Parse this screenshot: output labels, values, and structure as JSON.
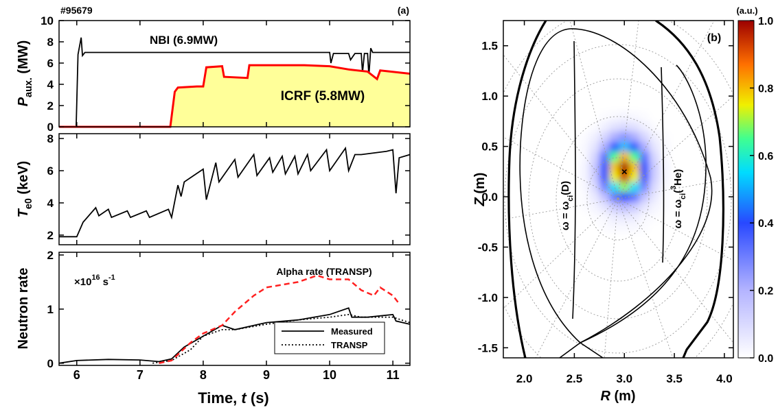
{
  "chart_data": [
    {
      "type": "line",
      "tag": "#95679",
      "label": "(a)",
      "ylabel": [
        "P",
        "aux.",
        " (MW)"
      ],
      "ylim": [
        0,
        10
      ],
      "yticks": [
        0,
        2,
        4,
        6,
        8,
        10
      ],
      "series": [
        {
          "name": "NBI (6.9MW)",
          "color": "#000000",
          "x": [
            5.72,
            5.99,
            6.02,
            6.07,
            6.09,
            6.13,
            10.0,
            10.02,
            10.06,
            10.08,
            10.3,
            10.33,
            10.4,
            10.5,
            10.52,
            10.55,
            10.6,
            10.62,
            10.65,
            10.68,
            11.27
          ],
          "values": [
            0,
            0,
            6.8,
            8.4,
            6.7,
            7.0,
            7.0,
            6.0,
            6.9,
            6.9,
            6.9,
            6.3,
            6.9,
            6.9,
            5.1,
            6.9,
            6.9,
            4.8,
            7.4,
            7.0,
            7.0
          ]
        },
        {
          "name": "ICRF (5.8MW)",
          "color": "#ff0000",
          "fill": "#ffff99",
          "x": [
            5.72,
            7.48,
            7.55,
            7.6,
            7.9,
            8.0,
            8.05,
            8.3,
            8.33,
            8.7,
            8.73,
            9.6,
            10.0,
            10.3,
            10.6,
            10.75,
            10.8,
            11.27
          ],
          "values": [
            0,
            0,
            3.3,
            3.7,
            3.8,
            3.8,
            5.6,
            5.7,
            4.7,
            4.6,
            5.8,
            5.8,
            5.7,
            5.4,
            5.2,
            4.5,
            5.3,
            5.0
          ]
        }
      ]
    },
    {
      "type": "line",
      "ylabel": [
        "T",
        "e0",
        " (keV)"
      ],
      "ylim": [
        1.4,
        8.3
      ],
      "yticks": [
        2,
        4,
        6,
        8
      ],
      "series": [
        {
          "color": "#000000",
          "x": [
            5.72,
            6.0,
            6.1,
            6.3,
            6.35,
            6.5,
            6.55,
            6.8,
            6.85,
            7.1,
            7.15,
            7.45,
            7.5,
            7.6,
            7.65,
            7.7,
            8.0,
            8.05,
            8.2,
            8.25,
            8.5,
            8.55,
            8.8,
            8.85,
            9.05,
            9.1,
            9.25,
            9.3,
            9.45,
            9.5,
            9.65,
            9.7,
            9.95,
            10.0,
            10.25,
            10.3,
            10.4,
            10.5,
            10.9,
            11.0,
            11.05,
            11.1,
            11.27
          ],
          "values": [
            1.9,
            1.9,
            2.8,
            3.7,
            3.2,
            3.6,
            3.1,
            3.5,
            3.1,
            3.5,
            3.1,
            3.6,
            3.1,
            5.1,
            4.4,
            5.3,
            6.1,
            4.2,
            6.5,
            5.3,
            6.7,
            5.6,
            7.0,
            5.7,
            6.8,
            5.9,
            6.9,
            5.8,
            6.9,
            5.8,
            7.0,
            6.0,
            7.3,
            6.0,
            7.4,
            6.0,
            7.0,
            7.0,
            7.2,
            7.3,
            4.6,
            6.8,
            7.0
          ]
        }
      ]
    },
    {
      "type": "line",
      "ylabel": "Neutron rate",
      "unit": [
        "×10",
        "16",
        " s",
        "-1"
      ],
      "xlabel": [
        "Time, ",
        "t",
        " (s)"
      ],
      "xlim": [
        5.72,
        11.27
      ],
      "xticks": [
        6,
        7,
        8,
        9,
        10,
        11
      ],
      "ylim": [
        -0.04,
        2.05
      ],
      "yticks": [
        0,
        1,
        2
      ],
      "series": [
        {
          "name": "Measured",
          "color": "#000000",
          "dash": "solid",
          "legend": true,
          "x": [
            5.72,
            6.0,
            6.5,
            7.0,
            7.3,
            7.5,
            7.7,
            8.0,
            8.3,
            8.5,
            9.0,
            9.5,
            10.0,
            10.3,
            10.35,
            10.6,
            11.0,
            11.05,
            11.27
          ],
          "values": [
            0,
            0.05,
            0.07,
            0.06,
            0.03,
            0.08,
            0.3,
            0.5,
            0.7,
            0.62,
            0.75,
            0.8,
            0.9,
            1.02,
            0.85,
            0.85,
            0.9,
            0.78,
            0.72
          ]
        },
        {
          "name": "TRANSP",
          "color": "#000000",
          "dash": "dotted",
          "legend": true,
          "x": [
            7.2,
            7.5,
            7.8,
            8.0,
            8.3,
            8.5,
            9.0,
            9.5,
            10.0,
            10.3,
            10.5,
            11.0,
            11.27
          ],
          "values": [
            0,
            0.05,
            0.25,
            0.5,
            0.62,
            0.62,
            0.72,
            0.8,
            0.85,
            0.9,
            0.85,
            0.85,
            0.75
          ]
        },
        {
          "name": "Alpha rate (TRANSP)",
          "color": "#ff2020",
          "dash": "dashed",
          "legend": false,
          "x": [
            7.3,
            7.5,
            7.8,
            8.0,
            8.3,
            8.5,
            8.8,
            9.0,
            9.5,
            9.8,
            10.0,
            10.3,
            10.5,
            10.7,
            10.8,
            11.0,
            11.1
          ],
          "values": [
            0,
            0.05,
            0.38,
            0.55,
            0.7,
            0.95,
            1.25,
            1.4,
            1.5,
            1.62,
            1.55,
            1.55,
            1.35,
            1.25,
            1.4,
            1.25,
            1.1
          ]
        }
      ]
    },
    {
      "type": "heatmap",
      "label": "(b)",
      "xlabel": [
        "R",
        " (m)"
      ],
      "ylabel": [
        "Z",
        " (m)"
      ],
      "xlim": [
        1.79,
        4.09
      ],
      "xticks": [
        {
          "value": 2,
          "label": "2.0"
        },
        {
          "value": 2.5,
          "label": "2.5"
        },
        {
          "value": 3,
          "label": "3.0"
        },
        {
          "value": 3.5,
          "label": "3.5"
        },
        {
          "value": 4,
          "label": "4.0"
        }
      ],
      "ylim": [
        -1.6,
        1.75
      ],
      "yticks": [
        {
          "value": -1.5,
          "label": "-1.5"
        },
        {
          "value": -1,
          "label": "-1.0"
        },
        {
          "value": -0.5,
          "label": "-0.5"
        },
        {
          "value": 0,
          "label": "0.0"
        },
        {
          "value": 0.5,
          "label": "0.5"
        },
        {
          "value": 1,
          "label": "1.0"
        },
        {
          "value": 1.5,
          "label": "1.5"
        }
      ],
      "x": [
        2.6,
        2.7,
        2.8,
        2.9,
        3.0,
        3.1,
        3.2,
        3.3,
        3.4
      ],
      "y": [
        -0.3,
        -0.2,
        -0.1,
        0,
        0.1,
        0.2,
        0.3,
        0.4,
        0.5,
        0.6,
        0.7,
        0.8
      ],
      "z": [
        [
          0,
          0,
          0.01,
          0.02,
          0.02,
          0.02,
          0.01,
          0,
          0
        ],
        [
          0,
          0.01,
          0.02,
          0.05,
          0.06,
          0.05,
          0.02,
          0.01,
          0
        ],
        [
          0.01,
          0.03,
          0.07,
          0.14,
          0.18,
          0.14,
          0.07,
          0.03,
          0.01
        ],
        [
          0.01,
          0.06,
          0.16,
          0.32,
          0.4,
          0.32,
          0.16,
          0.06,
          0.01
        ],
        [
          0.02,
          0.1,
          0.29,
          0.56,
          0.7,
          0.56,
          0.29,
          0.1,
          0.02
        ],
        [
          0.03,
          0.13,
          0.39,
          0.75,
          0.94,
          0.75,
          0.39,
          0.13,
          0.03
        ],
        [
          0.03,
          0.14,
          0.41,
          0.79,
          0.99,
          0.79,
          0.41,
          0.14,
          0.03
        ],
        [
          0.02,
          0.11,
          0.33,
          0.65,
          0.81,
          0.65,
          0.33,
          0.11,
          0.02
        ],
        [
          0.02,
          0.07,
          0.21,
          0.42,
          0.52,
          0.42,
          0.21,
          0.07,
          0.02
        ],
        [
          0.01,
          0.04,
          0.11,
          0.21,
          0.26,
          0.21,
          0.11,
          0.04,
          0.01
        ],
        [
          0,
          0.01,
          0.04,
          0.08,
          0.1,
          0.08,
          0.04,
          0.01,
          0
        ],
        [
          0,
          0,
          0.01,
          0.02,
          0.03,
          0.02,
          0.01,
          0,
          0
        ]
      ],
      "colorscale": [
        [
          0,
          "#ffffff"
        ],
        [
          0.2,
          "#b4b4ff"
        ],
        [
          0.4,
          "#2848ff"
        ],
        [
          0.55,
          "#00dcff"
        ],
        [
          0.65,
          "#40ff90"
        ],
        [
          0.75,
          "#f0f000"
        ],
        [
          0.87,
          "#ff7000"
        ],
        [
          1,
          "#9c0000"
        ]
      ],
      "colorbar": {
        "title": "(a.u.)",
        "lim": [
          0,
          1
        ],
        "ticks": [
          {
            "value": 0,
            "label": "0.0"
          },
          {
            "value": 0.2,
            "label": "0.2"
          },
          {
            "value": 0.4,
            "label": "0.4"
          },
          {
            "value": 0.6,
            "label": "0.6"
          },
          {
            "value": 0.8,
            "label": "0.8"
          },
          {
            "value": 1,
            "label": "1.0"
          }
        ]
      },
      "peak": {
        "x": 3.0,
        "y": 0.25,
        "label": "×"
      },
      "annotations": [
        [
          "ω = ω",
          "ci",
          "(D)"
        ],
        [
          "ω = ω",
          "ci",
          "(",
          "3",
          "He)"
        ]
      ]
    }
  ]
}
